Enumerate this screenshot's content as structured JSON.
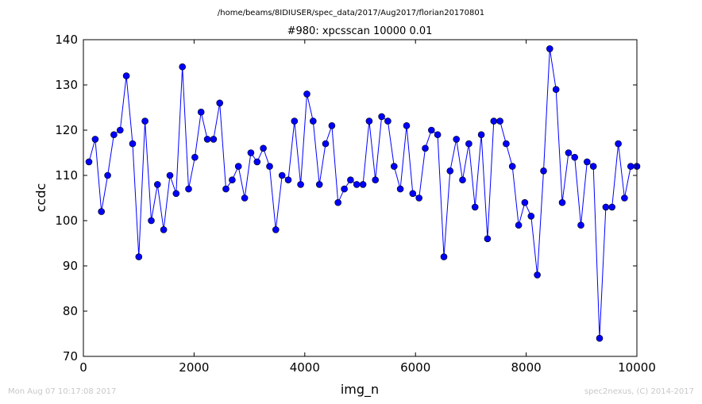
{
  "chart_data": {
    "type": "line",
    "suptitle": "/home/beams/8IDIUSER/spec_data/2017/Aug2017/florian20170801",
    "title": "#980: xpcsscan 10000 0.01",
    "xlabel": "img_n",
    "ylabel": "ccdc",
    "xlim": [
      0,
      10000
    ],
    "ylim": [
      70,
      140
    ],
    "xticks": [
      0,
      2000,
      4000,
      6000,
      8000,
      10000
    ],
    "yticks": [
      70,
      80,
      90,
      100,
      110,
      120,
      130,
      140
    ],
    "grid": false,
    "marker_color": "#0000ff",
    "series": [
      {
        "x": [
          101,
          214,
          326,
          439,
          551,
          664,
          776,
          889,
          1001,
          1114,
          1226,
          1339,
          1451,
          1564,
          1676,
          1789,
          1901,
          2014,
          2126,
          2239,
          2351,
          2464,
          2576,
          2689,
          2801,
          2914,
          3026,
          3139,
          3251,
          3364,
          3476,
          3589,
          3701,
          3814,
          3926,
          4039,
          4151,
          4264,
          4376,
          4489,
          4601,
          4714,
          4826,
          4939,
          5051,
          5164,
          5276,
          5389,
          5501,
          5614,
          5726,
          5839,
          5951,
          6064,
          6176,
          6289,
          6401,
          6514,
          6626,
          6739,
          6851,
          6964,
          7076,
          7189,
          7301,
          7414,
          7526,
          7639,
          7751,
          7864,
          7976,
          8089,
          8201,
          8314,
          8426,
          8539,
          8651,
          8764,
          8876,
          8989,
          9101,
          9214,
          9326,
          9439,
          9551,
          9664,
          9776,
          9889,
          10000
        ],
        "y": [
          113,
          118,
          102,
          110,
          119,
          120,
          132,
          117,
          92,
          122,
          100,
          108,
          98,
          110,
          106,
          134,
          107,
          114,
          124,
          118,
          118,
          126,
          107,
          109,
          112,
          105,
          115,
          113,
          116,
          112,
          98,
          110,
          109,
          122,
          108,
          128,
          122,
          108,
          117,
          121,
          104,
          107,
          109,
          108,
          108,
          122,
          109,
          123,
          122,
          112,
          107,
          121,
          106,
          105,
          116,
          120,
          119,
          92,
          111,
          118,
          109,
          117,
          103,
          119,
          96,
          122,
          122,
          117,
          112,
          99,
          104,
          101,
          88,
          111,
          138,
          129,
          104,
          115,
          114,
          99,
          113,
          112,
          74,
          103,
          103,
          117,
          105,
          112,
          112
        ]
      }
    ]
  },
  "footer": {
    "timestamp": "Mon Aug 07 10:17:08 2017",
    "credit": "spec2nexus, (C) 2014-2017"
  }
}
